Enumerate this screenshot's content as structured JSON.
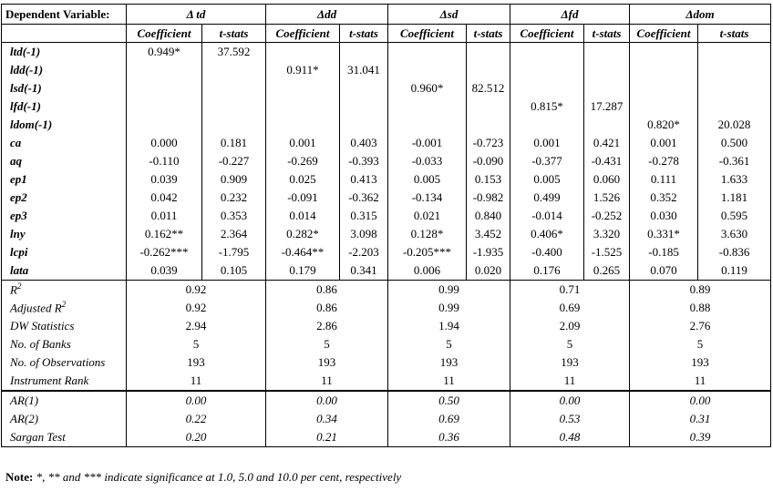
{
  "header": {
    "dependent_variable": "Dependent Variable:",
    "columns": [
      "Δ td",
      "Δdd",
      "Δsd",
      "Δfd",
      "Δdom"
    ],
    "coef_label": "Coefficient",
    "tstat_label": "t-stats"
  },
  "rows": [
    {
      "label": "ltd(-1)",
      "cells": [
        "0.949*",
        "37.592",
        "",
        "",
        "",
        "",
        "",
        "",
        "",
        ""
      ]
    },
    {
      "label": "ldd(-1)",
      "cells": [
        "",
        "",
        "0.911*",
        "31.041",
        "",
        "",
        "",
        "",
        "",
        ""
      ]
    },
    {
      "label": "lsd(-1)",
      "cells": [
        "",
        "",
        "",
        "",
        "0.960*",
        "82.512",
        "",
        "",
        "",
        ""
      ]
    },
    {
      "label": "lfd(-1)",
      "cells": [
        "",
        "",
        "",
        "",
        "",
        "",
        "0.815*",
        "17.287",
        "",
        ""
      ]
    },
    {
      "label": "ldom(-1)",
      "cells": [
        "",
        "",
        "",
        "",
        "",
        "",
        "",
        "",
        "0.820*",
        "20.028"
      ]
    },
    {
      "label": "ca",
      "cells": [
        "0.000",
        "0.181",
        "0.001",
        "0.403",
        "-0.001",
        "-0.723",
        "0.001",
        "0.421",
        "0.001",
        "0.500"
      ]
    },
    {
      "label": "aq",
      "cells": [
        "-0.110",
        "-0.227",
        "-0.269",
        "-0.393",
        "-0.033",
        "-0.090",
        "-0.377",
        "-0.431",
        "-0.278",
        "-0.361"
      ]
    },
    {
      "label": "ep1",
      "cells": [
        "0.039",
        "0.909",
        "0.025",
        "0.413",
        "0.005",
        "0.153",
        "0.005",
        "0.060",
        "0.111",
        "1.633"
      ]
    },
    {
      "label": "ep2",
      "cells": [
        "0.042",
        "0.232",
        "-0.091",
        "-0.362",
        "-0.134",
        "-0.982",
        "0.499",
        "1.526",
        "0.352",
        "1.181"
      ]
    },
    {
      "label": "ep3",
      "cells": [
        "0.011",
        "0.353",
        "0.014",
        "0.315",
        "0.021",
        "0.840",
        "-0.014",
        "-0.252",
        "0.030",
        "0.595"
      ]
    },
    {
      "label": "lny",
      "cells": [
        "0.162**",
        "2.364",
        "0.282*",
        "3.098",
        "0.128*",
        "3.452",
        "0.406*",
        "3.320",
        "0.331*",
        "3.630"
      ]
    },
    {
      "label": "lcpi",
      "cells": [
        "-0.262***",
        "-1.795",
        "-0.464**",
        "-2.203",
        "-0.205***",
        "-1.935",
        "-0.400",
        "-1.525",
        "-0.185",
        "-0.836"
      ]
    },
    {
      "label": "lata",
      "cells": [
        "0.039",
        "0.105",
        "0.179",
        "0.341",
        "0.006",
        "0.020",
        "0.176",
        "0.265",
        "0.070",
        "0.119"
      ]
    }
  ],
  "stats": [
    {
      "label": "R",
      "sup": "2",
      "values": [
        "0.92",
        "0.86",
        "0.99",
        "0.71",
        "0.89"
      ]
    },
    {
      "label": "Adjusted R",
      "sup": "2",
      "values": [
        "0.92",
        "0.86",
        "0.99",
        "0.69",
        "0.88"
      ]
    },
    {
      "label": "DW Statistics",
      "sup": "",
      "values": [
        "2.94",
        "2.86",
        "1.94",
        "2.09",
        "2.76"
      ]
    },
    {
      "label": "No. of Banks",
      "sup": "",
      "values": [
        "5",
        "5",
        "5",
        "5",
        "5"
      ]
    },
    {
      "label": "No. of Observations",
      "sup": "",
      "values": [
        "193",
        "193",
        "193",
        "193",
        "193"
      ]
    },
    {
      "label": "Instrument Rank",
      "sup": "",
      "values": [
        "11",
        "11",
        "11",
        "11",
        "11"
      ]
    }
  ],
  "tests": [
    {
      "label": "AR(1)",
      "values": [
        "0.00",
        "0.00",
        "0.50",
        "0.00",
        "0.00"
      ]
    },
    {
      "label": "AR(2)",
      "values": [
        "0.22",
        "0.34",
        "0.69",
        "0.53",
        "0.31"
      ]
    },
    {
      "label": "Sargan Test",
      "values": [
        "0.20",
        "0.21",
        "0.36",
        "0.48",
        "0.39"
      ]
    }
  ],
  "note": {
    "prefix": "Note:",
    "text": "*, ** and *** indicate significance at 1.0, 5.0 and 10.0 per cent, respectively"
  }
}
